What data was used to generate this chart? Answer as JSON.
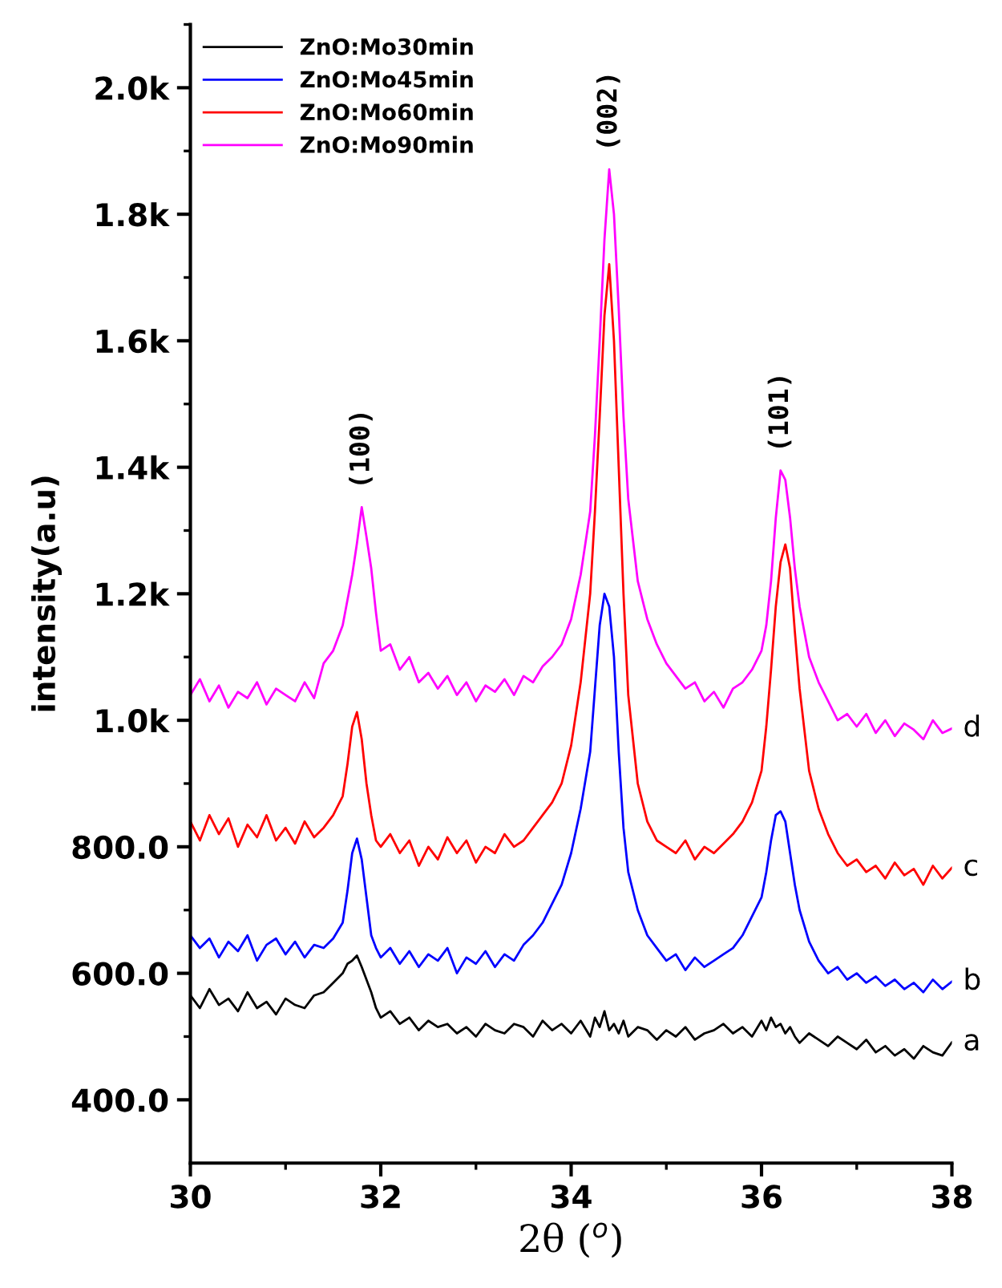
{
  "chart_data": {
    "type": "line",
    "xlabel": "2θ ($^{o}$)",
    "ylabel": "intensity(a.u)",
    "x": [
      30.0,
      30.1,
      30.2,
      30.3,
      30.4,
      30.5,
      30.6,
      30.7,
      30.8,
      30.9,
      31.0,
      31.1,
      31.2,
      31.3,
      31.4,
      31.5,
      31.6,
      31.65,
      31.7,
      31.75,
      31.8,
      31.85,
      31.9,
      31.95,
      32.0,
      32.1,
      32.2,
      32.3,
      32.4,
      32.5,
      32.6,
      32.7,
      32.8,
      32.9,
      33.0,
      33.1,
      33.2,
      33.3,
      33.4,
      33.5,
      33.6,
      33.7,
      33.8,
      33.9,
      34.0,
      34.1,
      34.2,
      34.25,
      34.3,
      34.35,
      34.4,
      34.45,
      34.5,
      34.55,
      34.6,
      34.7,
      34.8,
      34.9,
      35.0,
      35.1,
      35.2,
      35.3,
      35.4,
      35.5,
      35.6,
      35.7,
      35.8,
      35.9,
      36.0,
      36.05,
      36.1,
      36.15,
      36.2,
      36.25,
      36.3,
      36.35,
      36.4,
      36.5,
      36.6,
      36.7,
      36.8,
      36.9,
      37.0,
      37.1,
      37.2,
      37.3,
      37.4,
      37.5,
      37.6,
      37.7,
      37.8,
      37.9,
      38.0
    ],
    "series": [
      {
        "name": "ZnO:Mo30min",
        "color": "#000000",
        "values": [
          565,
          545,
          575,
          550,
          560,
          540,
          570,
          545,
          555,
          535,
          560,
          550,
          545,
          565,
          570,
          585,
          600,
          615,
          620,
          628,
          610,
          590,
          570,
          545,
          530,
          540,
          520,
          530,
          510,
          525,
          515,
          520,
          505,
          515,
          500,
          520,
          510,
          505,
          520,
          515,
          500,
          525,
          510,
          520,
          505,
          525,
          500,
          530,
          515,
          540,
          510,
          520,
          505,
          525,
          500,
          515,
          510,
          495,
          510,
          500,
          515,
          495,
          505,
          510,
          520,
          505,
          515,
          500,
          525,
          510,
          530,
          515,
          520,
          505,
          515,
          500,
          490,
          505,
          495,
          485,
          500,
          490,
          480,
          495,
          475,
          485,
          470,
          480,
          465,
          485,
          475,
          470,
          491
        ]
      },
      {
        "name": "ZnO:Mo45min",
        "color": "#0000ff",
        "values": [
          660,
          640,
          655,
          625,
          650,
          635,
          660,
          620,
          645,
          655,
          630,
          650,
          625,
          645,
          640,
          655,
          680,
          730,
          790,
          813,
          780,
          720,
          660,
          640,
          625,
          640,
          615,
          635,
          610,
          630,
          620,
          640,
          600,
          625,
          615,
          635,
          610,
          630,
          620,
          645,
          660,
          680,
          710,
          740,
          790,
          860,
          950,
          1050,
          1150,
          1200,
          1180,
          1100,
          950,
          830,
          760,
          700,
          660,
          640,
          620,
          630,
          605,
          625,
          610,
          620,
          630,
          640,
          660,
          690,
          720,
          760,
          810,
          850,
          856,
          840,
          790,
          740,
          700,
          650,
          620,
          600,
          610,
          590,
          600,
          585,
          595,
          580,
          590,
          575,
          585,
          570,
          590,
          575,
          587
        ]
      },
      {
        "name": "ZnO:Mo60min",
        "color": "#ff0000",
        "values": [
          840,
          810,
          850,
          820,
          845,
          800,
          835,
          815,
          850,
          810,
          830,
          805,
          840,
          815,
          830,
          850,
          880,
          930,
          990,
          1013,
          970,
          900,
          850,
          810,
          800,
          820,
          790,
          810,
          770,
          800,
          780,
          815,
          790,
          810,
          775,
          800,
          790,
          820,
          800,
          810,
          830,
          850,
          870,
          900,
          960,
          1060,
          1200,
          1330,
          1480,
          1640,
          1721,
          1600,
          1400,
          1200,
          1040,
          900,
          840,
          810,
          800,
          790,
          810,
          780,
          800,
          790,
          805,
          820,
          840,
          870,
          920,
          990,
          1080,
          1180,
          1250,
          1278,
          1240,
          1140,
          1050,
          920,
          860,
          820,
          790,
          770,
          780,
          760,
          770,
          750,
          775,
          755,
          765,
          740,
          770,
          750,
          767
        ]
      },
      {
        "name": "ZnO:Mo90min",
        "color": "#ff00ff",
        "values": [
          1040,
          1065,
          1030,
          1055,
          1020,
          1045,
          1035,
          1060,
          1025,
          1050,
          1040,
          1030,
          1060,
          1035,
          1090,
          1110,
          1150,
          1190,
          1230,
          1280,
          1337,
          1290,
          1240,
          1170,
          1110,
          1120,
          1080,
          1100,
          1060,
          1075,
          1050,
          1070,
          1040,
          1060,
          1030,
          1055,
          1045,
          1065,
          1040,
          1070,
          1060,
          1085,
          1100,
          1120,
          1160,
          1230,
          1330,
          1450,
          1600,
          1760,
          1871,
          1800,
          1650,
          1480,
          1350,
          1220,
          1160,
          1120,
          1090,
          1070,
          1050,
          1060,
          1030,
          1045,
          1020,
          1050,
          1060,
          1080,
          1110,
          1150,
          1220,
          1320,
          1395,
          1380,
          1320,
          1240,
          1180,
          1100,
          1060,
          1030,
          1000,
          1010,
          990,
          1010,
          980,
          1000,
          975,
          995,
          985,
          970,
          1000,
          980,
          987
        ]
      }
    ],
    "xlim": [
      30,
      38
    ],
    "xticks": [
      30,
      {
        "value": 31,
        "label": null
      },
      32,
      {
        "value": 33,
        "label": null
      },
      34,
      {
        "value": 35,
        "label": null
      },
      36,
      {
        "value": 37,
        "label": null
      },
      38
    ],
    "ylim": [
      300,
      2100
    ],
    "yticks": [
      {
        "value": 400,
        "label": "400.0"
      },
      {
        "value": 500,
        "label": null
      },
      {
        "value": 600,
        "label": "600.0"
      },
      {
        "value": 700,
        "label": null
      },
      {
        "value": 800,
        "label": "800.0"
      },
      {
        "value": 900,
        "label": null
      },
      {
        "value": 1000,
        "label": "1.0k"
      },
      {
        "value": 1100,
        "label": null
      },
      {
        "value": 1200,
        "label": "1.2k"
      },
      {
        "value": 1300,
        "label": null
      },
      {
        "value": 1400,
        "label": "1.4k"
      },
      {
        "value": 1500,
        "label": null
      },
      {
        "value": 1600,
        "label": "1.6k"
      },
      {
        "value": 1700,
        "label": null
      },
      {
        "value": 1800,
        "label": "1.8k"
      },
      {
        "value": 1900,
        "label": null
      },
      {
        "value": 2000,
        "label": "2.0k"
      },
      {
        "value": 2100,
        "label": null
      }
    ],
    "annotations": [
      {
        "text": "(100)",
        "x": 31.8,
        "y": 1337
      },
      {
        "text": "(002)",
        "x": 34.4,
        "y": 1871
      },
      {
        "text": "(101)",
        "x": 36.2,
        "y": 1395
      },
      {
        "text": "a",
        "x": 38,
        "y": 491
      },
      {
        "text": "b",
        "x": 38,
        "y": 587
      },
      {
        "text": "c",
        "x": 38,
        "y": 767
      },
      {
        "text": "d",
        "x": 38,
        "y": 987
      }
    ],
    "legend": "top left",
    "grid": false,
    "marker": "none",
    "line_style": "solid"
  }
}
